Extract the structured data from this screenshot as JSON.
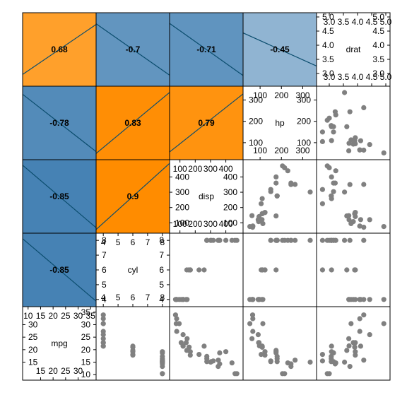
{
  "chart_data": {
    "type": "scatter",
    "title": "",
    "layout": "corrgram",
    "upper_panel": "scatter",
    "lower_panel": "correlation-shade",
    "variables": [
      {
        "name": "mpg",
        "ticks_a": [
          "15",
          "20",
          "25",
          "30"
        ],
        "ticks_b": [
          "10",
          "15",
          "20",
          "25",
          "30",
          "35"
        ],
        "range": [
          9.5,
          35.5
        ]
      },
      {
        "name": "cyl",
        "ticks_a": [
          "4",
          "5",
          "6",
          "7",
          "8"
        ],
        "ticks_b": [
          "4",
          "5",
          "6",
          "7",
          "8"
        ],
        "range": [
          3.8,
          8.2
        ]
      },
      {
        "name": "disp",
        "ticks_a": [
          "100",
          "200",
          "300",
          "400"
        ],
        "ticks_b": [
          "100",
          "200",
          "300",
          "400"
        ],
        "range": [
          60,
          485
        ]
      },
      {
        "name": "hp",
        "ticks_a": [
          "100",
          "200",
          "300"
        ],
        "ticks_b": [
          "100",
          "200",
          "300"
        ],
        "range": [
          40,
          345
        ]
      },
      {
        "name": "drat",
        "ticks_a": [
          "3.0",
          "3.5",
          "4.0",
          "4.5",
          "5.0"
        ],
        "ticks_b": [
          "3.0",
          "3.5",
          "4.0",
          "4.5",
          "5.0"
        ],
        "range": [
          2.7,
          5.0
        ]
      }
    ],
    "correlations": [
      {
        "row": 1,
        "col": 0,
        "label": "-0.85",
        "value": -0.85
      },
      {
        "row": 2,
        "col": 0,
        "label": "-0.85",
        "value": -0.85
      },
      {
        "row": 2,
        "col": 1,
        "label": "0.9",
        "value": 0.9
      },
      {
        "row": 3,
        "col": 0,
        "label": "-0.78",
        "value": -0.78
      },
      {
        "row": 3,
        "col": 1,
        "label": "0.83",
        "value": 0.83
      },
      {
        "row": 3,
        "col": 2,
        "label": "0.79",
        "value": 0.79
      },
      {
        "row": 4,
        "col": 0,
        "label": "0.68",
        "value": 0.68
      },
      {
        "row": 4,
        "col": 1,
        "label": "-0.7",
        "value": -0.7
      },
      {
        "row": 4,
        "col": 2,
        "label": "-0.71",
        "value": -0.71
      },
      {
        "row": 4,
        "col": 3,
        "label": "-0.45",
        "value": -0.45
      }
    ],
    "points": [
      {
        "mpg": 21.0,
        "cyl": 6,
        "disp": 160.0,
        "hp": 110,
        "drat": 3.9
      },
      {
        "mpg": 21.0,
        "cyl": 6,
        "disp": 160.0,
        "hp": 110,
        "drat": 3.9
      },
      {
        "mpg": 22.8,
        "cyl": 4,
        "disp": 108.0,
        "hp": 93,
        "drat": 3.85
      },
      {
        "mpg": 21.4,
        "cyl": 6,
        "disp": 258.0,
        "hp": 110,
        "drat": 3.08
      },
      {
        "mpg": 18.7,
        "cyl": 8,
        "disp": 360.0,
        "hp": 175,
        "drat": 3.15
      },
      {
        "mpg": 18.1,
        "cyl": 6,
        "disp": 225.0,
        "hp": 105,
        "drat": 2.76
      },
      {
        "mpg": 14.3,
        "cyl": 8,
        "disp": 360.0,
        "hp": 245,
        "drat": 3.21
      },
      {
        "mpg": 24.4,
        "cyl": 4,
        "disp": 146.7,
        "hp": 62,
        "drat": 3.69
      },
      {
        "mpg": 22.8,
        "cyl": 4,
        "disp": 140.8,
        "hp": 95,
        "drat": 3.92
      },
      {
        "mpg": 19.2,
        "cyl": 6,
        "disp": 167.6,
        "hp": 123,
        "drat": 3.92
      },
      {
        "mpg": 17.8,
        "cyl": 6,
        "disp": 167.6,
        "hp": 123,
        "drat": 3.92
      },
      {
        "mpg": 16.4,
        "cyl": 8,
        "disp": 275.8,
        "hp": 180,
        "drat": 3.07
      },
      {
        "mpg": 17.3,
        "cyl": 8,
        "disp": 275.8,
        "hp": 180,
        "drat": 3.07
      },
      {
        "mpg": 15.2,
        "cyl": 8,
        "disp": 275.8,
        "hp": 180,
        "drat": 3.07
      },
      {
        "mpg": 10.4,
        "cyl": 8,
        "disp": 472.0,
        "hp": 205,
        "drat": 2.93
      },
      {
        "mpg": 10.4,
        "cyl": 8,
        "disp": 460.0,
        "hp": 215,
        "drat": 3.0
      },
      {
        "mpg": 14.7,
        "cyl": 8,
        "disp": 440.0,
        "hp": 230,
        "drat": 3.23
      },
      {
        "mpg": 32.4,
        "cyl": 4,
        "disp": 78.7,
        "hp": 66,
        "drat": 4.08
      },
      {
        "mpg": 30.4,
        "cyl": 4,
        "disp": 75.7,
        "hp": 52,
        "drat": 4.93
      },
      {
        "mpg": 33.9,
        "cyl": 4,
        "disp": 71.1,
        "hp": 65,
        "drat": 4.22
      },
      {
        "mpg": 21.5,
        "cyl": 4,
        "disp": 120.1,
        "hp": 97,
        "drat": 3.7
      },
      {
        "mpg": 15.5,
        "cyl": 8,
        "disp": 318.0,
        "hp": 150,
        "drat": 2.76
      },
      {
        "mpg": 15.2,
        "cyl": 8,
        "disp": 304.0,
        "hp": 150,
        "drat": 3.15
      },
      {
        "mpg": 13.3,
        "cyl": 8,
        "disp": 350.0,
        "hp": 245,
        "drat": 3.73
      },
      {
        "mpg": 19.2,
        "cyl": 8,
        "disp": 400.0,
        "hp": 175,
        "drat": 3.08
      },
      {
        "mpg": 27.3,
        "cyl": 4,
        "disp": 79.0,
        "hp": 66,
        "drat": 4.08
      },
      {
        "mpg": 26.0,
        "cyl": 4,
        "disp": 120.3,
        "hp": 91,
        "drat": 4.43
      },
      {
        "mpg": 30.4,
        "cyl": 4,
        "disp": 95.1,
        "hp": 113,
        "drat": 3.77
      },
      {
        "mpg": 15.8,
        "cyl": 8,
        "disp": 351.0,
        "hp": 264,
        "drat": 4.22
      },
      {
        "mpg": 19.7,
        "cyl": 6,
        "disp": 145.0,
        "hp": 175,
        "drat": 3.62
      },
      {
        "mpg": 15.0,
        "cyl": 8,
        "disp": 301.0,
        "hp": 335,
        "drat": 3.54
      },
      {
        "mpg": 21.4,
        "cyl": 4,
        "disp": 121.0,
        "hp": 109,
        "drat": 4.11
      }
    ],
    "colors": {
      "point": "#808080",
      "positive": "#ff8c00",
      "negative": "#4682b4",
      "line": "#0b4d6e",
      "border": "#000000"
    },
    "grid": false,
    "legend": "none"
  }
}
